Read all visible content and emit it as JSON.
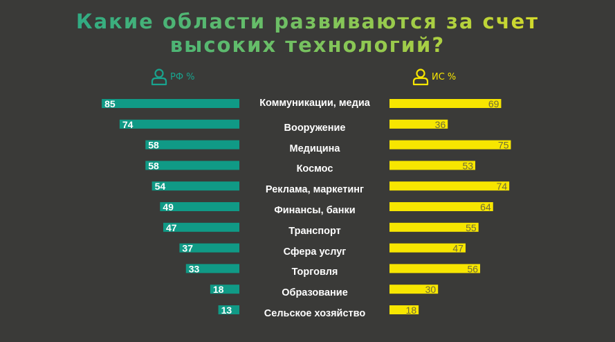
{
  "chart_data": {
    "type": "bar",
    "title_line1": "Какие области развиваются за счет",
    "title_line2": "высоких технологий?",
    "categories": [
      "Коммуникации, медиа",
      "Вооружение",
      "Медицина",
      "Космос",
      "Реклама, маркетинг",
      "Финансы, банки",
      "Транспорт",
      "Сфера услуг",
      "Торговля",
      "Образование",
      "Сельское хозяйство"
    ],
    "series": [
      {
        "name": "РФ %",
        "values": [
          85,
          74,
          58,
          58,
          54,
          49,
          47,
          37,
          33,
          18,
          13
        ],
        "color": "#109a86"
      },
      {
        "name": "ИС %",
        "values": [
          69,
          36,
          75,
          53,
          74,
          64,
          55,
          47,
          56,
          30,
          18
        ],
        "color": "#f7e600"
      }
    ],
    "xlim": [
      0,
      100
    ],
    "label_colors": {
      "left": "#ffffff",
      "right": "#6f6b3c"
    },
    "legend_icon": "person-icon"
  }
}
